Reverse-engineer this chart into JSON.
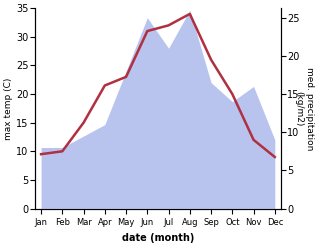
{
  "months": [
    "Jan",
    "Feb",
    "Mar",
    "Apr",
    "May",
    "Jun",
    "Jul",
    "Aug",
    "Sep",
    "Oct",
    "Nov",
    "Dec"
  ],
  "month_positions": [
    0,
    1,
    2,
    3,
    4,
    5,
    6,
    7,
    8,
    9,
    10,
    11
  ],
  "temperature": [
    9.5,
    10.0,
    15.0,
    21.5,
    23.0,
    31.0,
    32.0,
    34.0,
    26.0,
    20.0,
    12.0,
    9.0
  ],
  "precipitation": [
    8.0,
    8.0,
    9.5,
    11.0,
    18.0,
    25.0,
    21.0,
    26.0,
    16.5,
    14.0,
    16.0,
    9.0
  ],
  "temp_color": "#b03040",
  "precip_color": "#b8c4ee",
  "temp_ylim": [
    0,
    35
  ],
  "precip_ylim": [
    0,
    26.25
  ],
  "temp_yticks": [
    0,
    5,
    10,
    15,
    20,
    25,
    30,
    35
  ],
  "precip_yticks": [
    0,
    5,
    10,
    15,
    20,
    25
  ],
  "xlabel": "date (month)",
  "ylabel_left": "max temp (C)",
  "ylabel_right": "med. precipitation\n(kg/m2)",
  "fig_width": 3.18,
  "fig_height": 2.47,
  "dpi": 100
}
